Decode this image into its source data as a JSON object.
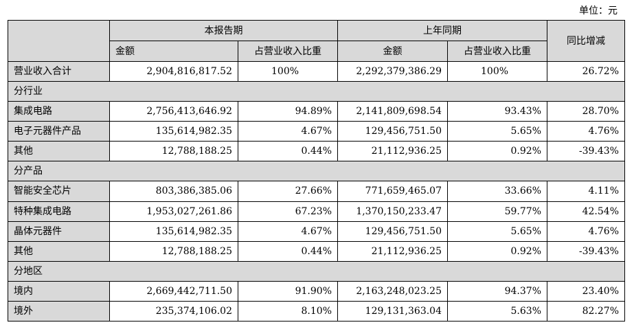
{
  "unit_label": "单位：元",
  "header": {
    "current_period": "本报告期",
    "prior_period": "上年同期",
    "yoy_change": "同比增减",
    "amount": "金额",
    "share_of_revenue": "占营业收入比重"
  },
  "total_row": {
    "label": "营业收入合计",
    "cur_amount": "2,904,816,817.52",
    "cur_share": "100%",
    "prev_amount": "2,292,379,386.29",
    "prev_share": "100%",
    "yoy": "26.72%"
  },
  "sections": {
    "industry": "分行业",
    "product": "分产品",
    "region": "分地区"
  },
  "industry_rows": [
    {
      "label": "集成电路",
      "cur_amount": "2,756,413,646.92",
      "cur_share": "94.89%",
      "prev_amount": "2,141,809,698.54",
      "prev_share": "93.43%",
      "yoy": "28.70%"
    },
    {
      "label": "电子元器件产品",
      "cur_amount": "135,614,982.35",
      "cur_share": "4.67%",
      "prev_amount": "129,456,751.50",
      "prev_share": "5.65%",
      "yoy": "4.76%"
    },
    {
      "label": "其他",
      "cur_amount": "12,788,188.25",
      "cur_share": "0.44%",
      "prev_amount": "21,112,936.25",
      "prev_share": "0.92%",
      "yoy": "-39.43%"
    }
  ],
  "product_rows": [
    {
      "label": "智能安全芯片",
      "cur_amount": "803,386,385.06",
      "cur_share": "27.66%",
      "prev_amount": "771,659,465.07",
      "prev_share": "33.66%",
      "yoy": "4.11%"
    },
    {
      "label": "特种集成电路",
      "cur_amount": "1,953,027,261.86",
      "cur_share": "67.23%",
      "prev_amount": "1,370,150,233.47",
      "prev_share": "59.77%",
      "yoy": "42.54%"
    },
    {
      "label": "晶体元器件",
      "cur_amount": "135,614,982.35",
      "cur_share": "4.67%",
      "prev_amount": "129,456,751.50",
      "prev_share": "5.65%",
      "yoy": "4.76%"
    },
    {
      "label": "其他",
      "cur_amount": "12,788,188.25",
      "cur_share": "0.44%",
      "prev_amount": "21,112,936.25",
      "prev_share": "0.92%",
      "yoy": "-39.43%"
    }
  ],
  "region_rows": [
    {
      "label": "境内",
      "cur_amount": "2,669,442,711.50",
      "cur_share": "91.90%",
      "prev_amount": "2,163,248,023.25",
      "prev_share": "94.37%",
      "yoy": "23.40%"
    },
    {
      "label": "境外",
      "cur_amount": "235,374,106.02",
      "cur_share": "8.10%",
      "prev_amount": "129,131,363.04",
      "prev_share": "5.63%",
      "yoy": "82.27%"
    }
  ]
}
